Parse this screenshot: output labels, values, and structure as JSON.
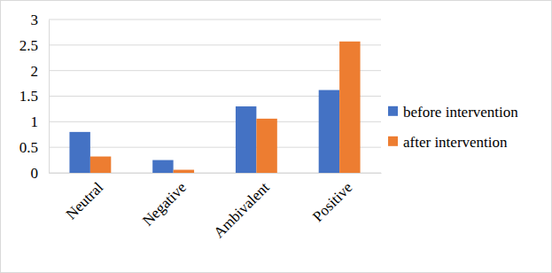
{
  "chart_data": {
    "type": "bar",
    "categories": [
      "Neutral",
      "Negative",
      "Ambivalent",
      "Positive"
    ],
    "series": [
      {
        "name": "before intervention",
        "color": "#4472c4",
        "values": [
          0.8,
          0.25,
          1.3,
          1.62
        ]
      },
      {
        "name": "after intervention",
        "color": "#ed7d31",
        "values": [
          0.32,
          0.06,
          1.06,
          2.57
        ]
      }
    ],
    "ylim": [
      0,
      3
    ],
    "yticks": [
      0,
      0.5,
      1,
      1.5,
      2,
      2.5,
      3
    ],
    "grid": true,
    "legend": "right"
  }
}
